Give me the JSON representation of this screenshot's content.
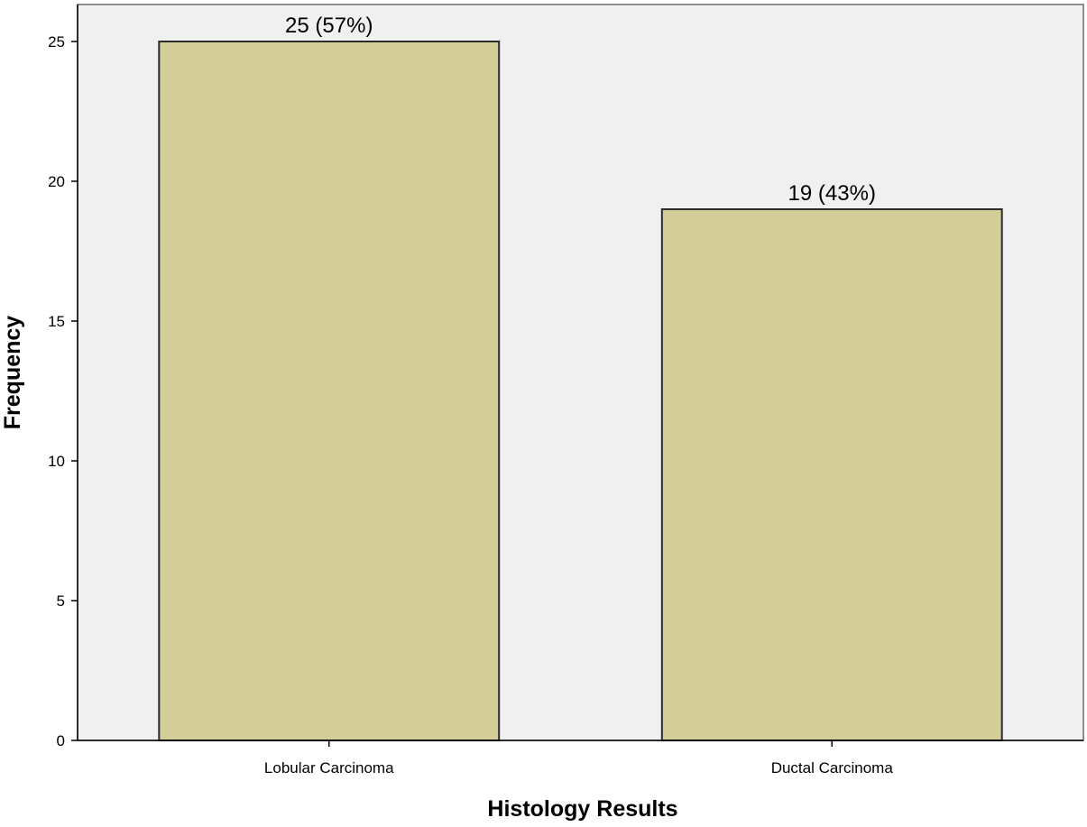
{
  "chart_data": {
    "type": "bar",
    "title": "",
    "xlabel": "Histology Results",
    "ylabel": "Frequency",
    "categories": [
      "Lobular Carcinoma",
      "Ductal Carcinoma"
    ],
    "values": [
      25,
      19
    ],
    "data_labels": [
      "25 (57%)",
      "19 (43%)"
    ],
    "ylim": [
      0,
      25
    ],
    "yticks": [
      "0",
      "5",
      "10",
      "15",
      "20",
      "25"
    ],
    "grid": false,
    "legend": "none",
    "colors": {
      "bar_fill": "#d3cd97",
      "bar_stroke": "#2b2b2b",
      "plot_background": "#f0f0f0",
      "axis": "#000000"
    }
  }
}
